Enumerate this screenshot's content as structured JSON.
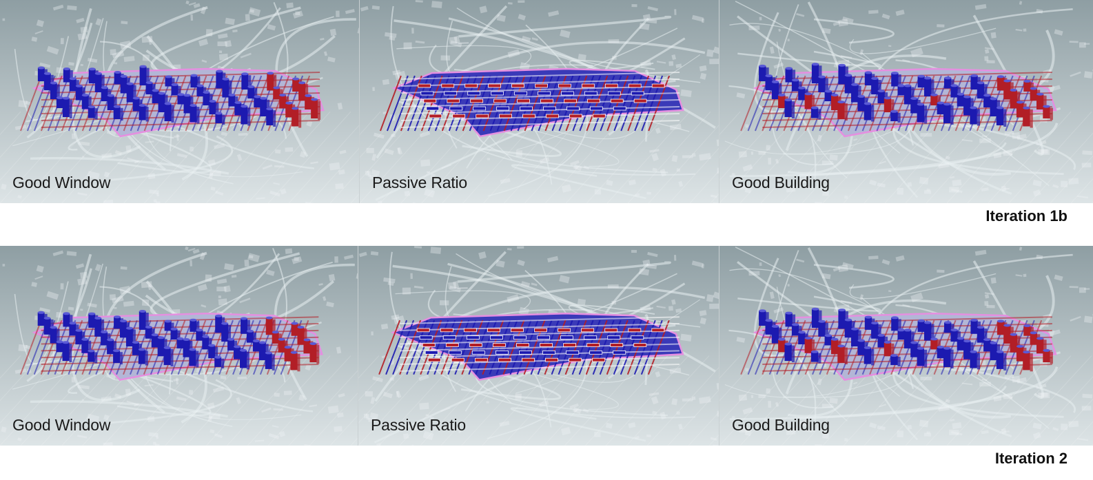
{
  "rows": [
    {
      "iteration_label": "Iteration 1b",
      "panels": [
        {
          "label": "Good Window",
          "mode": "towers"
        },
        {
          "label": "Passive Ratio",
          "mode": "flat"
        },
        {
          "label": "Good Building",
          "mode": "buildings"
        }
      ]
    },
    {
      "iteration_label": "Iteration 2",
      "panels": [
        {
          "label": "Good Window",
          "mode": "towers"
        },
        {
          "label": "Passive Ratio",
          "mode": "flat"
        },
        {
          "label": "Good Building",
          "mode": "buildings"
        }
      ]
    }
  ],
  "colors": {
    "map_top": "#8e9ea3",
    "map_bottom": "#dde4e6",
    "road": "#e8eef0",
    "high": "#1c1ab0",
    "low": "#b21e26",
    "outline": "#e58fe0"
  }
}
